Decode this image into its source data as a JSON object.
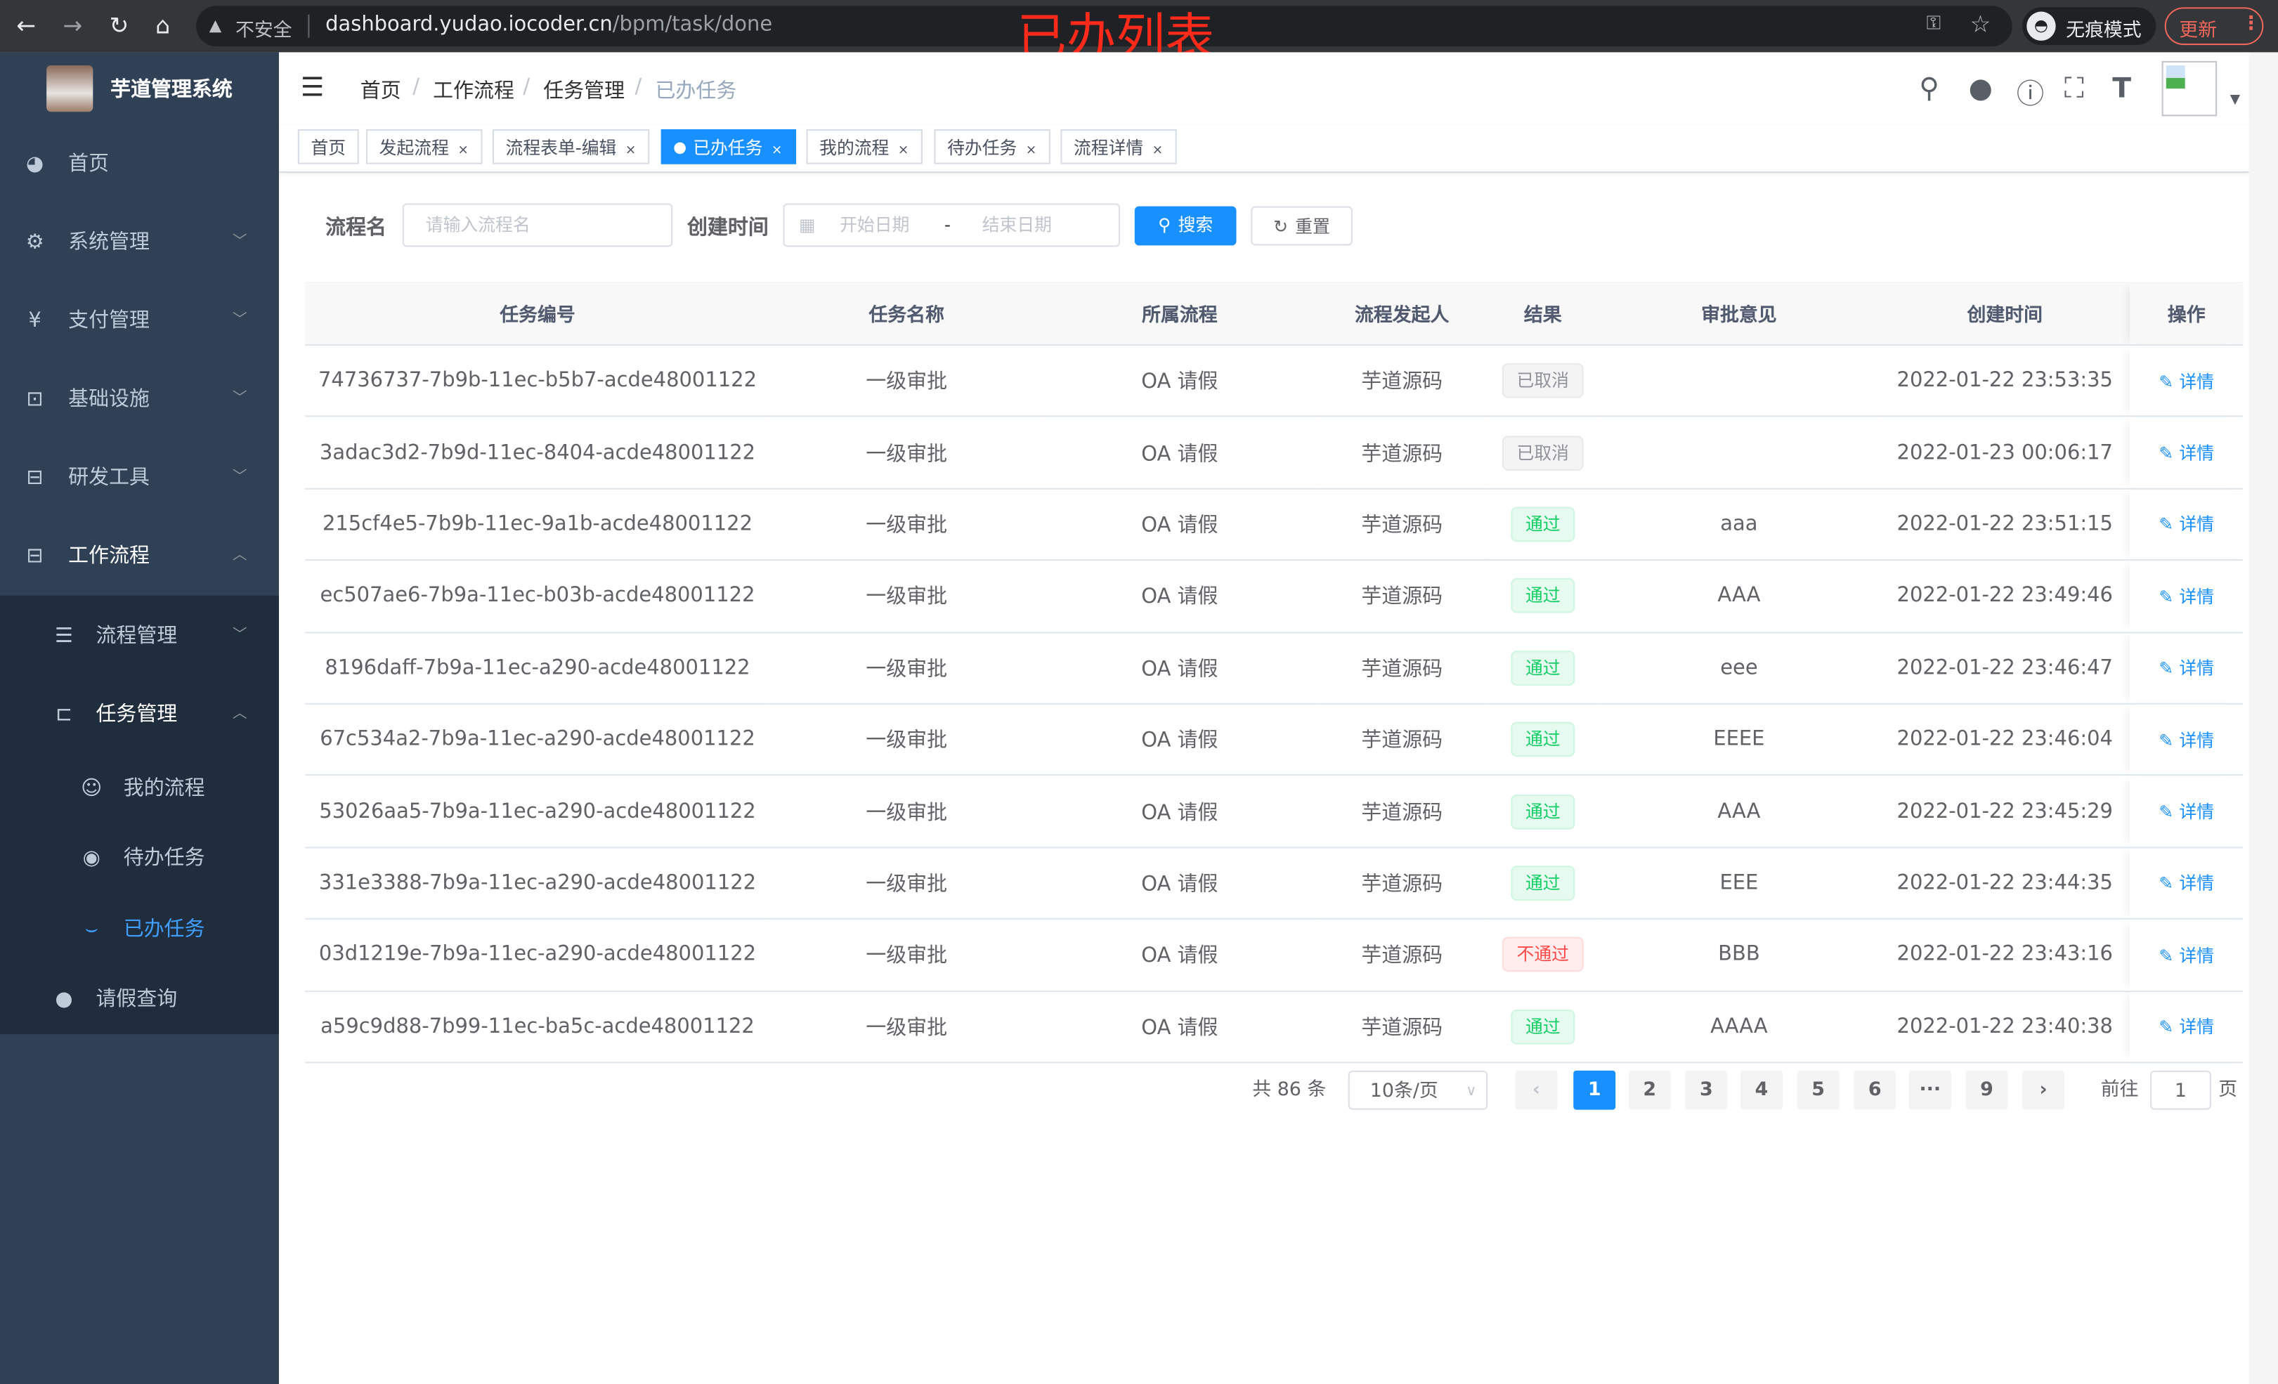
{
  "browser": {
    "insecure_label": "不安全",
    "url_host": "dashboard.yudao.iocoder.cn",
    "url_path": "/bpm/task/done",
    "incognito_label": "无痕模式",
    "update_label": "更新"
  },
  "annotation": "已办列表",
  "sidebar": {
    "title": "芋道管理系统",
    "items": [
      {
        "label": "首页",
        "icon": "dashboard-icon"
      },
      {
        "label": "系统管理",
        "icon": "gear-icon"
      },
      {
        "label": "支付管理",
        "icon": "yen-icon"
      },
      {
        "label": "基础设施",
        "icon": "monitor-icon"
      },
      {
        "label": "研发工具",
        "icon": "toolbox-icon"
      },
      {
        "label": "工作流程",
        "icon": "toolbox-icon"
      }
    ],
    "sub_items": [
      {
        "label": "流程管理",
        "icon": "list-icon"
      },
      {
        "label": "任务管理",
        "icon": "task-icon"
      },
      {
        "label": "我的流程",
        "icon": "people-icon"
      },
      {
        "label": "待办任务",
        "icon": "eye-open-icon"
      },
      {
        "label": "已办任务",
        "icon": "eye-closed-icon"
      },
      {
        "label": "请假查询",
        "icon": "user-icon"
      }
    ]
  },
  "breadcrumb": [
    "首页",
    "工作流程",
    "任务管理",
    "已办任务"
  ],
  "tags": [
    "首页",
    "发起流程",
    "流程表单-编辑",
    "已办任务",
    "我的流程",
    "待办任务",
    "流程详情"
  ],
  "search": {
    "name_label": "流程名",
    "name_placeholder": "请输入流程名",
    "time_label": "创建时间",
    "start_placeholder": "开始日期",
    "range_sep": "-",
    "end_placeholder": "结束日期",
    "search_btn": "搜索",
    "reset_btn": "重置"
  },
  "table": {
    "columns": [
      "任务编号",
      "任务名称",
      "所属流程",
      "流程发起人",
      "结果",
      "审批意见",
      "创建时间",
      "操作"
    ],
    "rows": [
      {
        "id": "74736737-7b9b-11ec-b5b7-acde48001122",
        "name": "一级审批",
        "process": "OA 请假",
        "starter": "芋道源码",
        "result": "已取消",
        "result_type": "cancel",
        "comment": "",
        "time": "2022-01-22 23:53:35",
        "op": "详情"
      },
      {
        "id": "3adac3d2-7b9d-11ec-8404-acde48001122",
        "name": "一级审批",
        "process": "OA 请假",
        "starter": "芋道源码",
        "result": "已取消",
        "result_type": "cancel",
        "comment": "",
        "time": "2022-01-23 00:06:17",
        "op": "详情"
      },
      {
        "id": "215cf4e5-7b9b-11ec-9a1b-acde48001122",
        "name": "一级审批",
        "process": "OA 请假",
        "starter": "芋道源码",
        "result": "通过",
        "result_type": "pass",
        "comment": "aaa",
        "time": "2022-01-22 23:51:15",
        "op": "详情"
      },
      {
        "id": "ec507ae6-7b9a-11ec-b03b-acde48001122",
        "name": "一级审批",
        "process": "OA 请假",
        "starter": "芋道源码",
        "result": "通过",
        "result_type": "pass",
        "comment": "AAA",
        "time": "2022-01-22 23:49:46",
        "op": "详情"
      },
      {
        "id": "8196daff-7b9a-11ec-a290-acde48001122",
        "name": "一级审批",
        "process": "OA 请假",
        "starter": "芋道源码",
        "result": "通过",
        "result_type": "pass",
        "comment": "eee",
        "time": "2022-01-22 23:46:47",
        "op": "详情"
      },
      {
        "id": "67c534a2-7b9a-11ec-a290-acde48001122",
        "name": "一级审批",
        "process": "OA 请假",
        "starter": "芋道源码",
        "result": "通过",
        "result_type": "pass",
        "comment": "EEEE",
        "time": "2022-01-22 23:46:04",
        "op": "详情"
      },
      {
        "id": "53026aa5-7b9a-11ec-a290-acde48001122",
        "name": "一级审批",
        "process": "OA 请假",
        "starter": "芋道源码",
        "result": "通过",
        "result_type": "pass",
        "comment": "AAA",
        "time": "2022-01-22 23:45:29",
        "op": "详情"
      },
      {
        "id": "331e3388-7b9a-11ec-a290-acde48001122",
        "name": "一级审批",
        "process": "OA 请假",
        "starter": "芋道源码",
        "result": "通过",
        "result_type": "pass",
        "comment": "EEE",
        "time": "2022-01-22 23:44:35",
        "op": "详情"
      },
      {
        "id": "03d1219e-7b9a-11ec-a290-acde48001122",
        "name": "一级审批",
        "process": "OA 请假",
        "starter": "芋道源码",
        "result": "不通过",
        "result_type": "fail",
        "comment": "BBB",
        "time": "2022-01-22 23:43:16",
        "op": "详情"
      },
      {
        "id": "a59c9d88-7b99-11ec-ba5c-acde48001122",
        "name": "一级审批",
        "process": "OA 请假",
        "starter": "芋道源码",
        "result": "通过",
        "result_type": "pass",
        "comment": "AAAA",
        "time": "2022-01-22 23:40:38",
        "op": "详情"
      }
    ]
  },
  "pagination": {
    "total_label": "共 86 条",
    "page_size": "10条/页",
    "pages": [
      "1",
      "2",
      "3",
      "4",
      "5",
      "6",
      "···",
      "9"
    ],
    "current": "1",
    "goto_prefix": "前往",
    "goto_value": "1",
    "goto_suffix": "页"
  },
  "colors": {
    "primary": "#1890ff",
    "sidebar": "#304156",
    "submenu": "#1f2d3d",
    "annotation": "#ff2a1a"
  }
}
